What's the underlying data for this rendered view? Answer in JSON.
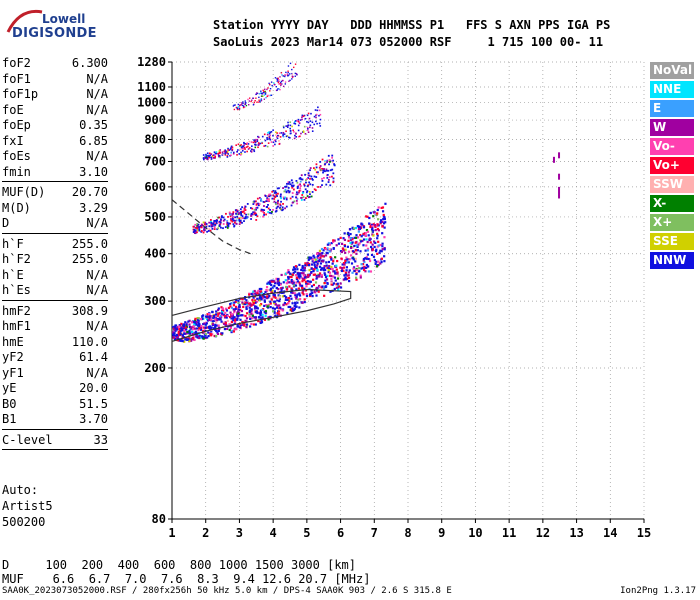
{
  "logo": {
    "line1": "Lowell",
    "line2": "DIGISONDE"
  },
  "header": {
    "line1": "Station YYYY DAY   DDD HHMMSS P1   FFS S AXN PPS IGA PS",
    "line2": "SaoLuis 2023 Mar14 073 052000 RSF     1 715 100 00- 11"
  },
  "params_group1": [
    {
      "label": "foF2",
      "value": "6.300"
    },
    {
      "label": "foF1",
      "value": "N/A"
    },
    {
      "label": "foF1p",
      "value": "N/A"
    },
    {
      "label": "foE",
      "value": "N/A"
    },
    {
      "label": "foEp",
      "value": "0.35"
    },
    {
      "label": "fxI",
      "value": "6.85"
    },
    {
      "label": "foEs",
      "value": "N/A"
    },
    {
      "label": "fmin",
      "value": "3.10"
    }
  ],
  "params_group2": [
    {
      "label": "MUF(D)",
      "value": "20.70"
    },
    {
      "label": "M(D)",
      "value": "3.29"
    },
    {
      "label": "D",
      "value": "N/A"
    }
  ],
  "params_group3": [
    {
      "label": "h`F",
      "value": "255.0"
    },
    {
      "label": "h`F2",
      "value": "255.0"
    },
    {
      "label": "h`E",
      "value": "N/A"
    },
    {
      "label": "h`Es",
      "value": "N/A"
    }
  ],
  "params_group4": [
    {
      "label": "hmF2",
      "value": "308.9"
    },
    {
      "label": "hmF1",
      "value": "N/A"
    },
    {
      "label": "hmE",
      "value": "110.0"
    },
    {
      "label": "yF2",
      "value": "61.4"
    },
    {
      "label": "yF1",
      "value": "N/A"
    },
    {
      "label": "yE",
      "value": "20.0"
    },
    {
      "label": "B0",
      "value": "51.5"
    },
    {
      "label": "B1",
      "value": "3.70"
    }
  ],
  "clevel": {
    "label": "C-level",
    "value": "33"
  },
  "auto": {
    "line1": "Auto:",
    "line2": "Artist5",
    "line3": "500200"
  },
  "legend": [
    {
      "label": "NoVal",
      "color": "#a0a0a0"
    },
    {
      "label": "NNE",
      "color": "#00e5ff"
    },
    {
      "label": "E",
      "color": "#3aa0ff"
    },
    {
      "label": "W",
      "color": "#a000a0"
    },
    {
      "label": "Vo-",
      "color": "#ff40b0"
    },
    {
      "label": "Vo+",
      "color": "#ff0030"
    },
    {
      "label": "SSW",
      "color": "#ffb0b0"
    },
    {
      "label": "X-",
      "color": "#008000"
    },
    {
      "label": "X+",
      "color": "#7fbf5f"
    },
    {
      "label": "SSE",
      "color": "#d0d000"
    },
    {
      "label": "NNW",
      "color": "#1010e0"
    }
  ],
  "bottom": {
    "d_line": "D     100  200  400  600  800 1000 1500 3000 [km]",
    "muf_line": "MUF    6.6  6.7  7.0  7.6  8.3  9.4 12.6 20.7 [MHz]"
  },
  "footer": {
    "text": "SAA0K_2023073052000.RSF / 280fx256h 50 kHz 5.0 km / DPS-4 SAA0K 903 / 2.6 S 315.8 E",
    "version": "Ion2Png 1.3.17"
  },
  "chart_data": {
    "type": "scatter",
    "title": "",
    "xlabel": "",
    "ylabel": "",
    "xlim": [
      1,
      15
    ],
    "ylim": [
      80,
      1280
    ],
    "x_ticks": [
      1,
      2,
      3,
      4,
      5,
      6,
      7,
      8,
      9,
      10,
      11,
      12,
      13,
      14,
      15
    ],
    "y_ticks": [
      80,
      200,
      300,
      400,
      500,
      600,
      700,
      800,
      900,
      1000,
      1100,
      1280
    ],
    "y_scale": "log",
    "grid": true,
    "traces": [
      {
        "name": "first-hop F2 echo band",
        "x_range": [
          1.0,
          7.3
        ],
        "h_range": [
          230,
          580
        ]
      },
      {
        "name": "second-hop F2 echo band",
        "x_range": [
          1.6,
          5.8
        ],
        "h_range": [
          450,
          700
        ]
      },
      {
        "name": "third-hop F2 echo band",
        "x_range": [
          1.9,
          5.4
        ],
        "h_range": [
          700,
          930
        ]
      },
      {
        "name": "fourth-hop F2 echo band",
        "x_range": [
          2.8,
          4.7
        ],
        "h_range": [
          950,
          1280
        ]
      },
      {
        "name": "isolated echoes near 12.5 MHz",
        "x_range": [
          12.4,
          12.5
        ],
        "h_range": [
          580,
          750
        ]
      }
    ],
    "profile_curve": {
      "x": [
        1.0,
        2.0,
        3.0,
        4.0,
        5.0,
        5.8,
        6.3,
        6.3,
        5.0,
        4.0,
        3.0,
        2.0,
        1.0
      ],
      "h": [
        235,
        250,
        262,
        272,
        283,
        295,
        305,
        318,
        322,
        315,
        305,
        290,
        275
      ]
    },
    "dashed_curve": {
      "x": [
        1.0,
        1.5,
        2.0,
        2.5,
        3.0,
        3.4
      ],
      "h": [
        555,
        510,
        468,
        432,
        410,
        398
      ]
    }
  }
}
